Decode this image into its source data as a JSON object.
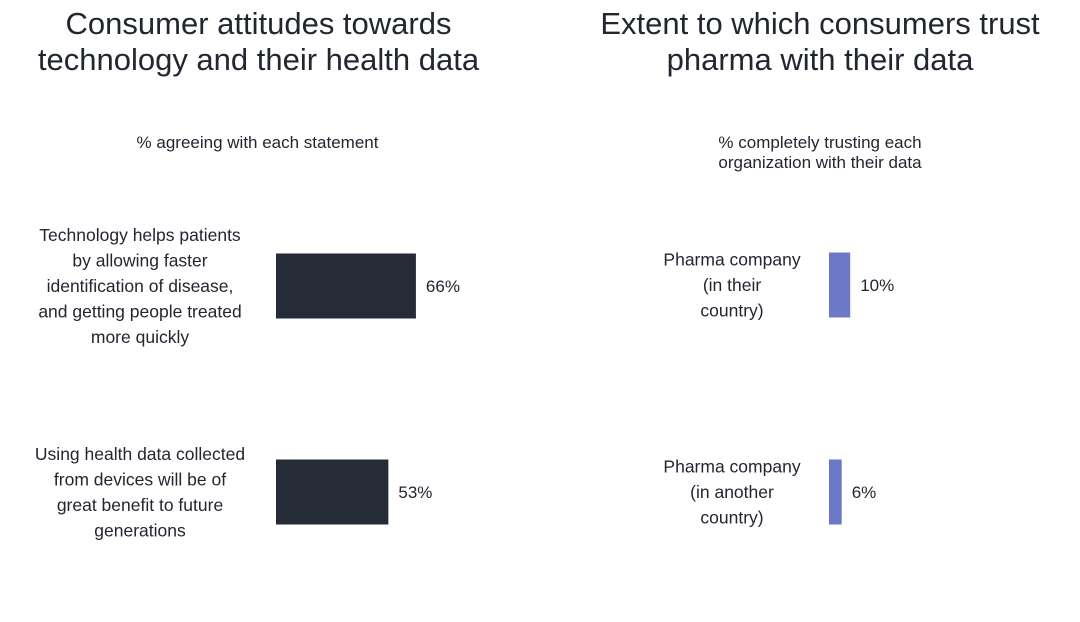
{
  "chart_data": [
    {
      "type": "bar",
      "orientation": "horizontal",
      "title": "Consumer attitudes towards technology and their health data",
      "subtitle": "% agreeing with each statement",
      "categories": [
        "Technology helps patients by allowing faster identification of disease, and getting people treated more quickly",
        "Using health data collected from devices will be of great benefit to future generations"
      ],
      "values": [
        66,
        53
      ],
      "value_labels": [
        "66%",
        "53%"
      ],
      "unit": "%",
      "xlim": [
        0,
        100
      ],
      "color": "#262b38",
      "grid": false
    },
    {
      "type": "bar",
      "orientation": "horizontal",
      "title": "Extent to which consumers trust pharma with their data",
      "subtitle": "% completely trusting each organization with their data",
      "categories": [
        "Pharma company (in their country)",
        "Pharma company (in another country)"
      ],
      "values": [
        10,
        6
      ],
      "value_labels": [
        "10%",
        "6%"
      ],
      "unit": "%",
      "xlim": [
        0,
        100
      ],
      "color": "#6b79c8",
      "grid": false
    }
  ]
}
